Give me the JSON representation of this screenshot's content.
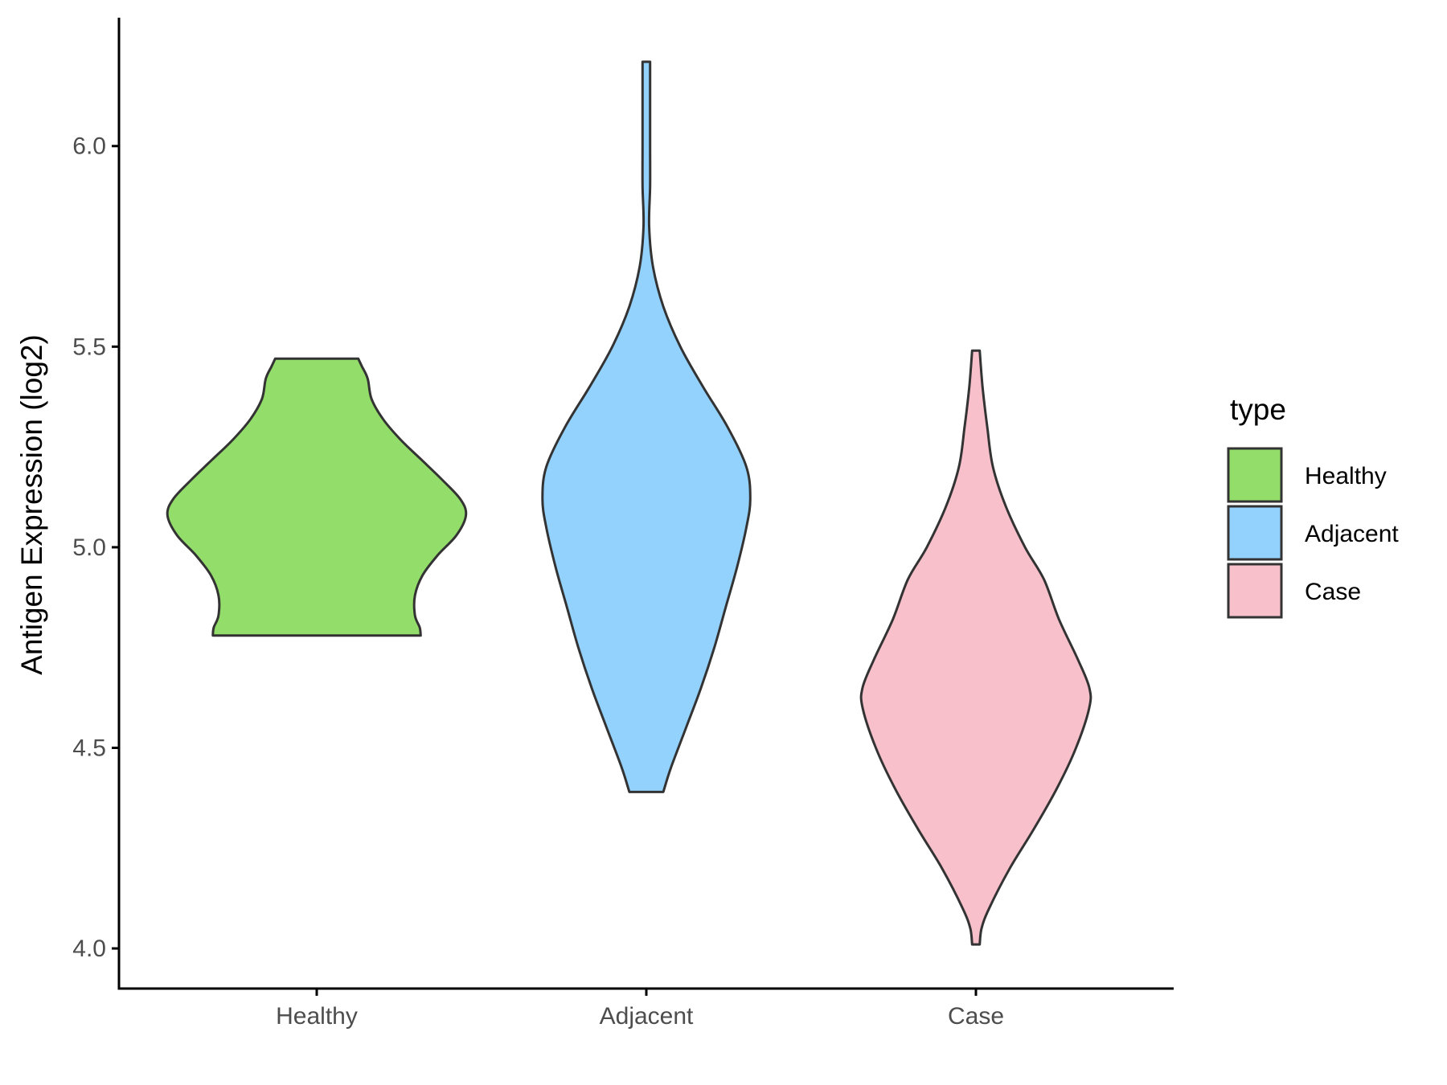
{
  "chart_data": {
    "type": "violin",
    "ylabel": "Antigen Expression (log2)",
    "xlabel": "",
    "ylim": [
      3.9,
      6.32
    ],
    "yticks": [
      "4.0",
      "4.5",
      "5.0",
      "5.5",
      "6.0"
    ],
    "categories": [
      "Healthy",
      "Adjacent",
      "Case"
    ],
    "grid": false,
    "legend": {
      "title": "type",
      "position": "right",
      "entries": [
        "Healthy",
        "Adjacent",
        "Case"
      ]
    },
    "colors": {
      "Healthy": "#93dd6a",
      "Adjacent": "#94d2fe",
      "Case": "#f7c0cb",
      "outline": "#333333"
    },
    "series": [
      {
        "name": "Healthy",
        "min": 4.78,
        "max": 5.47,
        "profile": [
          [
            4.78,
            0.55
          ],
          [
            4.8,
            0.545
          ],
          [
            4.83,
            0.52
          ],
          [
            4.88,
            0.52
          ],
          [
            4.93,
            0.56
          ],
          [
            4.98,
            0.64
          ],
          [
            5.03,
            0.74
          ],
          [
            5.08,
            0.79
          ],
          [
            5.12,
            0.76
          ],
          [
            5.17,
            0.66
          ],
          [
            5.22,
            0.55
          ],
          [
            5.27,
            0.44
          ],
          [
            5.32,
            0.35
          ],
          [
            5.37,
            0.29
          ],
          [
            5.42,
            0.27
          ],
          [
            5.45,
            0.24
          ],
          [
            5.47,
            0.22
          ]
        ]
      },
      {
        "name": "Adjacent",
        "min": 4.39,
        "max": 6.21,
        "profile": [
          [
            4.39,
            0.09
          ],
          [
            4.45,
            0.13
          ],
          [
            4.55,
            0.21
          ],
          [
            4.65,
            0.29
          ],
          [
            4.75,
            0.36
          ],
          [
            4.85,
            0.42
          ],
          [
            4.95,
            0.48
          ],
          [
            5.05,
            0.53
          ],
          [
            5.12,
            0.55
          ],
          [
            5.2,
            0.53
          ],
          [
            5.3,
            0.43
          ],
          [
            5.4,
            0.3
          ],
          [
            5.5,
            0.18
          ],
          [
            5.6,
            0.09
          ],
          [
            5.7,
            0.035
          ],
          [
            5.8,
            0.015
          ],
          [
            5.9,
            0.02
          ],
          [
            6.0,
            0.02
          ],
          [
            6.1,
            0.02
          ],
          [
            6.21,
            0.02
          ]
        ]
      },
      {
        "name": "Case",
        "min": 4.01,
        "max": 5.49,
        "profile": [
          [
            4.01,
            0.02
          ],
          [
            4.05,
            0.03
          ],
          [
            4.1,
            0.07
          ],
          [
            4.2,
            0.18
          ],
          [
            4.3,
            0.31
          ],
          [
            4.4,
            0.43
          ],
          [
            4.5,
            0.53
          ],
          [
            4.6,
            0.6
          ],
          [
            4.65,
            0.6
          ],
          [
            4.72,
            0.54
          ],
          [
            4.82,
            0.44
          ],
          [
            4.92,
            0.36
          ],
          [
            5.0,
            0.26
          ],
          [
            5.1,
            0.16
          ],
          [
            5.2,
            0.09
          ],
          [
            5.3,
            0.06
          ],
          [
            5.4,
            0.035
          ],
          [
            5.49,
            0.02
          ]
        ]
      }
    ]
  }
}
